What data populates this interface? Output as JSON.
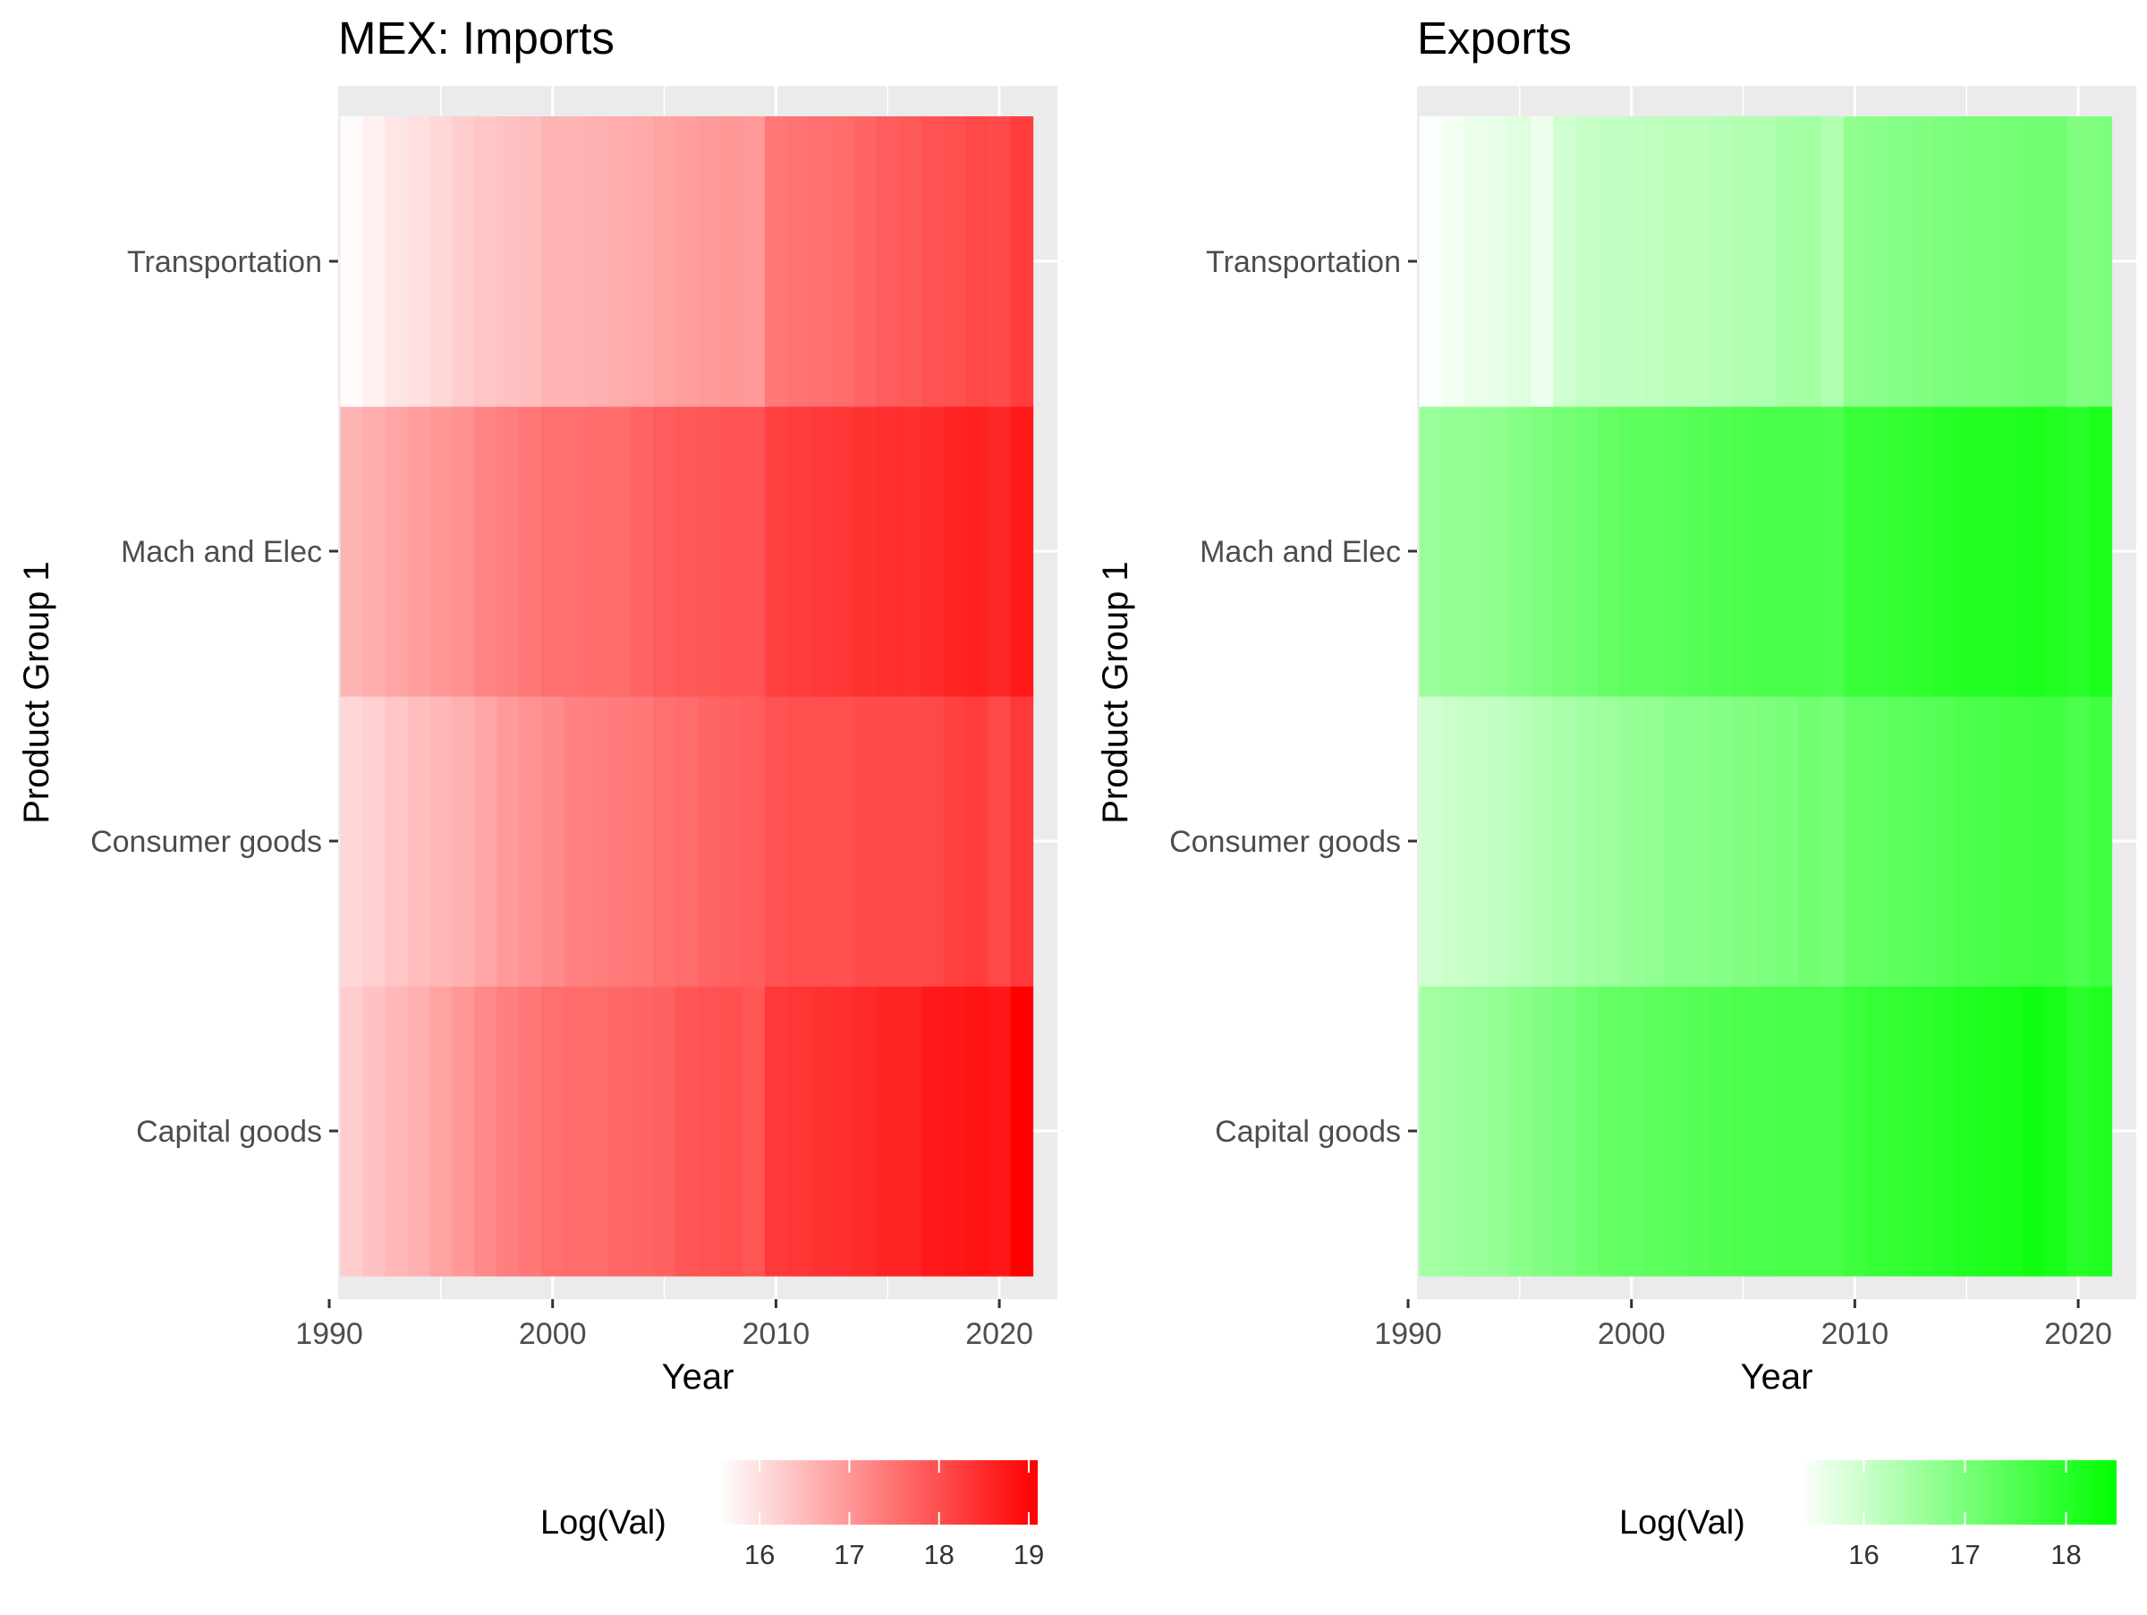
{
  "chart_data": [
    {
      "type": "heatmap",
      "title": "MEX: Imports",
      "xlabel": "Year",
      "ylabel": "Product Group 1",
      "x": [
        1991,
        1992,
        1993,
        1994,
        1995,
        1996,
        1997,
        1998,
        1999,
        2000,
        2001,
        2002,
        2003,
        2004,
        2005,
        2006,
        2007,
        2008,
        2009,
        2010,
        2011,
        2012,
        2013,
        2014,
        2015,
        2016,
        2017,
        2018,
        2019,
        2020,
        2021
      ],
      "xlim": [
        1990.4,
        2022.6
      ],
      "xticks": [
        1990,
        2000,
        2010,
        2020
      ],
      "categories": [
        "Capital goods",
        "Consumer goods",
        "Mach and Elec",
        "Transportation"
      ],
      "values": {
        "Capital goods": [
          16.25,
          16.4,
          16.55,
          16.65,
          16.85,
          17.0,
          17.2,
          17.35,
          17.45,
          17.55,
          17.6,
          17.6,
          17.65,
          17.7,
          17.75,
          17.9,
          17.95,
          18.0,
          17.9,
          18.3,
          18.35,
          18.4,
          18.45,
          18.5,
          18.6,
          18.6,
          18.75,
          18.8,
          18.85,
          18.8,
          19.1
        ],
        "Consumer goods": [
          16.1,
          16.2,
          16.35,
          16.45,
          16.55,
          16.65,
          16.8,
          16.95,
          17.05,
          17.15,
          17.3,
          17.35,
          17.4,
          17.45,
          17.55,
          17.6,
          17.7,
          17.75,
          17.8,
          17.95,
          18.0,
          18.0,
          18.0,
          18.05,
          18.05,
          18.05,
          18.1,
          18.2,
          18.25,
          18.1,
          18.3
        ],
        "Mach and Elec": [
          16.6,
          16.7,
          16.8,
          16.9,
          17.0,
          17.1,
          17.25,
          17.35,
          17.45,
          17.55,
          17.55,
          17.6,
          17.6,
          17.7,
          17.8,
          17.85,
          17.9,
          17.95,
          17.95,
          18.2,
          18.25,
          18.3,
          18.35,
          18.4,
          18.45,
          18.45,
          18.5,
          18.6,
          18.65,
          18.55,
          18.75
        ],
        "Transportation": [
          15.6,
          15.75,
          15.9,
          16.0,
          16.1,
          16.25,
          16.35,
          16.4,
          16.45,
          16.6,
          16.6,
          16.65,
          16.7,
          16.75,
          16.85,
          16.9,
          16.95,
          17.0,
          16.95,
          17.45,
          17.5,
          17.55,
          17.6,
          17.7,
          17.8,
          17.85,
          17.95,
          18.0,
          18.1,
          18.05,
          18.25
        ]
      },
      "legend": {
        "title": "Log(Val)",
        "ticks": [
          16,
          17,
          18,
          19
        ],
        "limits": [
          15.55,
          19.1
        ],
        "low_color": "#ffffff",
        "high_color": "#ff0000",
        "position": "bottom"
      },
      "grid": true
    },
    {
      "type": "heatmap",
      "title": "Exports",
      "xlabel": "Year",
      "ylabel": "Product Group 1",
      "x": [
        1991,
        1992,
        1993,
        1994,
        1995,
        1996,
        1997,
        1998,
        1999,
        2000,
        2001,
        2002,
        2003,
        2004,
        2005,
        2006,
        2007,
        2008,
        2009,
        2010,
        2011,
        2012,
        2013,
        2014,
        2015,
        2016,
        2017,
        2018,
        2019,
        2020,
        2021
      ],
      "xlim": [
        1990.4,
        2022.6
      ],
      "xticks": [
        1990,
        2000,
        2010,
        2020
      ],
      "categories": [
        "Capital goods",
        "Consumer goods",
        "Mach and Elec",
        "Transportation"
      ],
      "values": {
        "Capital goods": [
          16.5,
          16.55,
          16.6,
          16.65,
          16.8,
          16.9,
          17.0,
          17.15,
          17.25,
          17.3,
          17.35,
          17.4,
          17.45,
          17.5,
          17.55,
          17.55,
          17.6,
          17.6,
          17.6,
          17.75,
          17.85,
          17.9,
          17.95,
          18.0,
          18.1,
          18.15,
          18.2,
          18.3,
          18.2,
          18.0,
          18.1
        ],
        "Consumer goods": [
          15.9,
          16.0,
          16.05,
          16.1,
          16.2,
          16.3,
          16.4,
          16.5,
          16.55,
          16.65,
          16.7,
          16.8,
          16.8,
          16.85,
          16.9,
          16.95,
          17.0,
          17.1,
          17.05,
          17.25,
          17.3,
          17.35,
          17.4,
          17.45,
          17.55,
          17.6,
          17.65,
          17.7,
          17.7,
          17.55,
          17.7
        ],
        "Mach and Elec": [
          16.6,
          16.65,
          16.7,
          16.75,
          16.85,
          16.95,
          17.05,
          17.15,
          17.25,
          17.35,
          17.35,
          17.4,
          17.45,
          17.5,
          17.55,
          17.6,
          17.6,
          17.6,
          17.55,
          17.8,
          17.85,
          17.9,
          17.95,
          18.0,
          18.05,
          18.05,
          18.1,
          18.15,
          18.1,
          18.0,
          18.15
        ],
        "Transportation": [
          15.4,
          15.5,
          15.6,
          15.65,
          15.75,
          15.55,
          15.95,
          16.05,
          16.1,
          16.1,
          16.15,
          16.2,
          16.2,
          16.25,
          16.3,
          16.35,
          16.45,
          16.5,
          16.3,
          16.75,
          16.8,
          16.85,
          16.9,
          16.95,
          17.0,
          17.0,
          17.05,
          17.1,
          17.1,
          16.9,
          16.95
        ]
      },
      "legend": {
        "title": "Log(Val)",
        "ticks": [
          16,
          17,
          18
        ],
        "limits": [
          15.35,
          18.5
        ],
        "low_color": "#ffffff",
        "high_color": "#00ff00",
        "position": "bottom"
      },
      "grid": true
    }
  ]
}
